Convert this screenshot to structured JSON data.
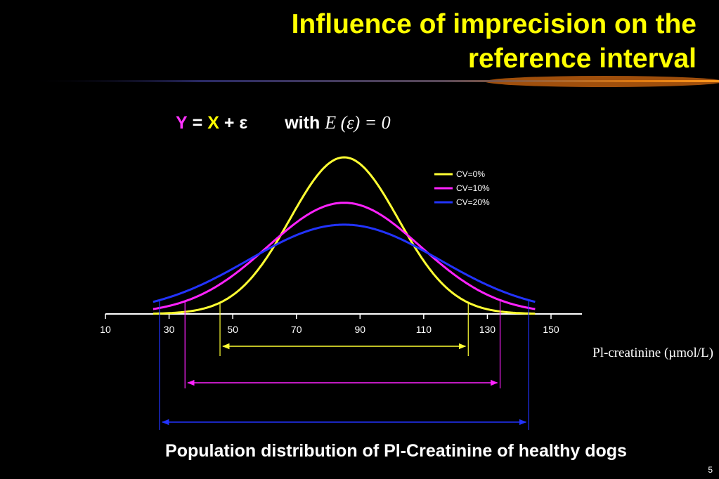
{
  "slide": {
    "title_line1": "Influence of imprecision on the",
    "title_line2": "reference interval",
    "formula": {
      "y": "Y",
      "eq": "=",
      "x": "X",
      "plus": "+",
      "eps": "ε",
      "with": "with",
      "expectation": "E (ε) = 0"
    },
    "caption": "Population distribution of Pl-Creatinine of healthy dogs",
    "slide_number": "5"
  },
  "colors": {
    "title": "#ffff00",
    "cv0": "#ffff33",
    "cv10": "#ff22ff",
    "cv20": "#2233ff",
    "background": "#000000"
  },
  "chart_data": {
    "type": "line",
    "title": "",
    "xlabel": "Pl-creatinine (µmol/L)",
    "ylabel": "",
    "xlim": [
      10,
      160
    ],
    "x_ticks": [
      10,
      30,
      50,
      70,
      90,
      110,
      130,
      150
    ],
    "grid": false,
    "legend_position": "top-right",
    "mean": 85,
    "x_range": [
      25,
      145
    ],
    "series": [
      {
        "name": "CV=0%",
        "color": "#ffff33",
        "sd": 17.0,
        "peak": 1.0,
        "reference_interval": [
          46,
          124
        ]
      },
      {
        "name": "CV=10%",
        "color": "#ff22ff",
        "sd": 24.0,
        "peak": 0.71,
        "reference_interval": [
          35,
          134
        ]
      },
      {
        "name": "CV=20%",
        "color": "#2233ff",
        "sd": 30.0,
        "peak": 0.57,
        "reference_interval": [
          27,
          143
        ]
      }
    ]
  }
}
